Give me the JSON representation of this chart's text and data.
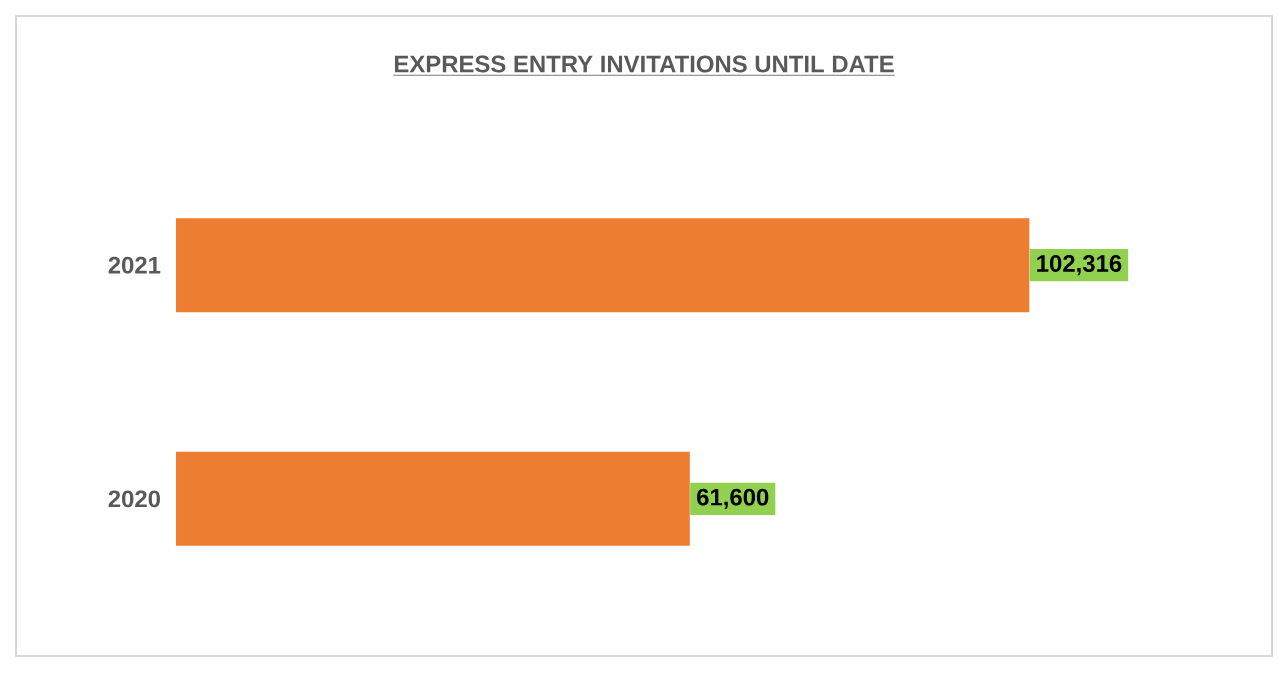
{
  "chart_data": {
    "type": "bar",
    "orientation": "horizontal",
    "title": "EXPRESS ENTRY INVITATIONS UNTIL DATE",
    "categories": [
      "2021",
      "2020"
    ],
    "values": [
      102316,
      61600
    ],
    "value_labels": [
      "102,316",
      "61,600"
    ],
    "color": "#ed7d31"
  }
}
